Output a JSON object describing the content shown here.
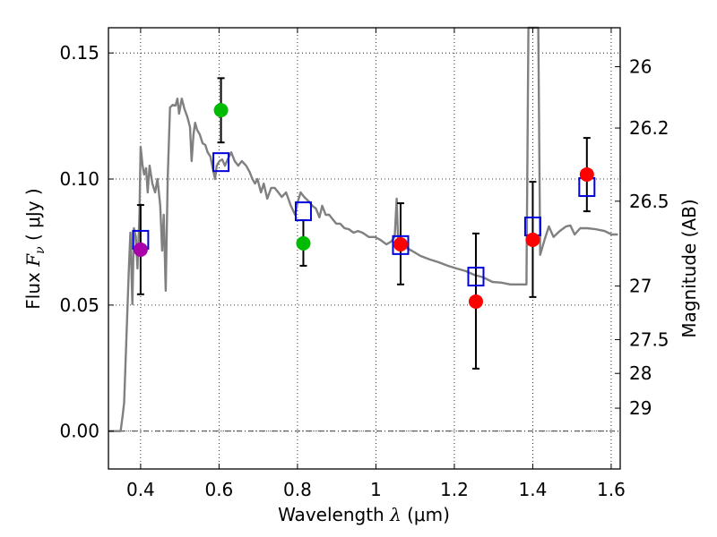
{
  "chart_data": {
    "type": "scatter",
    "title": "",
    "xlabel": "Wavelength  λ (μm)",
    "ylabel": "Flux  Fν  ( μJy )",
    "ylabel_parts": {
      "prefix": "Flux  ",
      "symbol": "F",
      "subscript": "ν",
      "suffix": "  ( μJy )"
    },
    "xlabel_parts": {
      "prefix": "Wavelength  ",
      "symbol": "λ",
      "suffix": " (μm)"
    },
    "y2label": "Magnitude (AB)",
    "xlim": [
      0.318,
      1.623
    ],
    "ylim": [
      -0.015,
      0.16
    ],
    "grid": true,
    "xticks": [
      {
        "value": 0.4,
        "label": "0.4"
      },
      {
        "value": 0.6,
        "label": "0.6"
      },
      {
        "value": 0.8,
        "label": "0.8"
      },
      {
        "value": 1.0,
        "label": "1"
      },
      {
        "value": 1.2,
        "label": "1.2"
      },
      {
        "value": 1.4,
        "label": "1.4"
      },
      {
        "value": 1.6,
        "label": "1.6"
      }
    ],
    "yticks": [
      {
        "value": 0.0,
        "label": "0.00"
      },
      {
        "value": 0.05,
        "label": "0.05"
      },
      {
        "value": 0.1,
        "label": "0.10"
      },
      {
        "value": 0.15,
        "label": "0.15"
      }
    ],
    "y2ticks": [
      {
        "mag": 26,
        "label": "26"
      },
      {
        "mag": 26.2,
        "label": "26.2"
      },
      {
        "mag": 26.5,
        "label": "26.5"
      },
      {
        "mag": 27,
        "label": "27"
      },
      {
        "mag": 27.5,
        "label": "27.5"
      },
      {
        "mag": 28,
        "label": "28"
      },
      {
        "mag": 29,
        "label": "29"
      }
    ],
    "zero_line": 0.0,
    "colors": {
      "spectrum": "#808080",
      "model_box": "#0000dd",
      "errorbar": "#000000",
      "purple": "#aa00aa",
      "green": "#00bb00",
      "red": "#ff0000"
    },
    "observations": [
      {
        "lambda": 0.4,
        "flux": 0.072,
        "err_low": 0.0543,
        "err_high": 0.0897,
        "color": "purple",
        "model": 0.0759
      },
      {
        "lambda": 0.605,
        "flux": 0.1273,
        "err_low": 0.1145,
        "err_high": 0.14,
        "color": "green",
        "model": 0.1067
      },
      {
        "lambda": 0.815,
        "flux": 0.0745,
        "err_low": 0.0656,
        "err_high": 0.0837,
        "color": "green",
        "model": 0.0872
      },
      {
        "lambda": 1.063,
        "flux": 0.0741,
        "err_low": 0.0582,
        "err_high": 0.0904,
        "color": "red",
        "model": 0.0738
      },
      {
        "lambda": 1.255,
        "flux": 0.0514,
        "err_low": 0.0248,
        "err_high": 0.0784,
        "color": "red",
        "model": 0.0613
      },
      {
        "lambda": 1.4,
        "flux": 0.0759,
        "err_low": 0.0532,
        "err_high": 0.0989,
        "color": "red",
        "model": 0.0812
      },
      {
        "lambda": 1.538,
        "flux": 0.1018,
        "err_low": 0.0872,
        "err_high": 0.1163,
        "color": "red",
        "model": 0.0968
      }
    ],
    "spectrum": [
      [
        0.318,
        0.0
      ],
      [
        0.349,
        0.0
      ],
      [
        0.354,
        0.006
      ],
      [
        0.358,
        0.0113
      ],
      [
        0.37,
        0.0645
      ],
      [
        0.374,
        0.0787
      ],
      [
        0.379,
        0.0504
      ],
      [
        0.383,
        0.0805
      ],
      [
        0.388,
        0.077
      ],
      [
        0.392,
        0.0645
      ],
      [
        0.397,
        0.0858
      ],
      [
        0.4,
        0.1128
      ],
      [
        0.405,
        0.1053
      ],
      [
        0.409,
        0.1018
      ],
      [
        0.414,
        0.1043
      ],
      [
        0.418,
        0.0947
      ],
      [
        0.423,
        0.1053
      ],
      [
        0.43,
        0.0982
      ],
      [
        0.437,
        0.0947
      ],
      [
        0.443,
        0.1
      ],
      [
        0.45,
        0.0894
      ],
      [
        0.455,
        0.0716
      ],
      [
        0.459,
        0.0858
      ],
      [
        0.464,
        0.0557
      ],
      [
        0.469,
        0.1
      ],
      [
        0.475,
        0.1284
      ],
      [
        0.482,
        0.1294
      ],
      [
        0.489,
        0.1291
      ],
      [
        0.494,
        0.1319
      ],
      [
        0.498,
        0.1259
      ],
      [
        0.505,
        0.1319
      ],
      [
        0.512,
        0.1277
      ],
      [
        0.519,
        0.1248
      ],
      [
        0.526,
        0.1206
      ],
      [
        0.53,
        0.1071
      ],
      [
        0.535,
        0.1177
      ],
      [
        0.539,
        0.1223
      ],
      [
        0.544,
        0.1195
      ],
      [
        0.551,
        0.1177
      ],
      [
        0.558,
        0.1142
      ],
      [
        0.565,
        0.1135
      ],
      [
        0.571,
        0.1106
      ],
      [
        0.578,
        0.1089
      ],
      [
        0.585,
        0.1035
      ],
      [
        0.59,
        0.1
      ],
      [
        0.594,
        0.1053
      ],
      [
        0.601,
        0.1071
      ],
      [
        0.608,
        0.1078
      ],
      [
        0.615,
        0.1053
      ],
      [
        0.622,
        0.1078
      ],
      [
        0.631,
        0.1106
      ],
      [
        0.64,
        0.1071
      ],
      [
        0.649,
        0.1053
      ],
      [
        0.658,
        0.1071
      ],
      [
        0.669,
        0.1053
      ],
      [
        0.678,
        0.1028
      ],
      [
        0.685,
        0.1
      ],
      [
        0.692,
        0.0982
      ],
      [
        0.698,
        0.1
      ],
      [
        0.707,
        0.0947
      ],
      [
        0.714,
        0.0982
      ],
      [
        0.723,
        0.0922
      ],
      [
        0.733,
        0.0965
      ],
      [
        0.742,
        0.0965
      ],
      [
        0.751,
        0.0947
      ],
      [
        0.76,
        0.0929
      ],
      [
        0.771,
        0.0947
      ],
      [
        0.783,
        0.0894
      ],
      [
        0.794,
        0.0858
      ],
      [
        0.801,
        0.0911
      ],
      [
        0.808,
        0.0947
      ],
      [
        0.817,
        0.0929
      ],
      [
        0.829,
        0.0911
      ],
      [
        0.838,
        0.0894
      ],
      [
        0.847,
        0.0883
      ],
      [
        0.856,
        0.0848
      ],
      [
        0.863,
        0.0894
      ],
      [
        0.872,
        0.0858
      ],
      [
        0.881,
        0.0858
      ],
      [
        0.89,
        0.084
      ],
      [
        0.899,
        0.0823
      ],
      [
        0.909,
        0.0823
      ],
      [
        0.92,
        0.0805
      ],
      [
        0.931,
        0.0801
      ],
      [
        0.943,
        0.0787
      ],
      [
        0.954,
        0.0794
      ],
      [
        0.966,
        0.0787
      ],
      [
        0.982,
        0.077
      ],
      [
        0.998,
        0.077
      ],
      [
        1.011,
        0.0759
      ],
      [
        1.027,
        0.0741
      ],
      [
        1.039,
        0.0752
      ],
      [
        1.048,
        0.077
      ],
      [
        1.053,
        0.0922
      ],
      [
        1.057,
        0.0752
      ],
      [
        1.069,
        0.0734
      ],
      [
        1.091,
        0.0716
      ],
      [
        1.114,
        0.0695
      ],
      [
        1.137,
        0.0681
      ],
      [
        1.16,
        0.067
      ],
      [
        1.183,
        0.0656
      ],
      [
        1.206,
        0.0645
      ],
      [
        1.229,
        0.0635
      ],
      [
        1.251,
        0.062
      ],
      [
        1.274,
        0.061
      ],
      [
        1.297,
        0.0592
      ],
      [
        1.32,
        0.0589
      ],
      [
        1.343,
        0.0582
      ],
      [
        1.37,
        0.0582
      ],
      [
        1.384,
        0.0582
      ],
      [
        1.389,
        0.16
      ],
      [
        1.414,
        0.16
      ],
      [
        1.419,
        0.0699
      ],
      [
        1.43,
        0.0759
      ],
      [
        1.441,
        0.0812
      ],
      [
        1.453,
        0.077
      ],
      [
        1.469,
        0.0794
      ],
      [
        1.485,
        0.0812
      ],
      [
        1.496,
        0.0816
      ],
      [
        1.507,
        0.078
      ],
      [
        1.521,
        0.0805
      ],
      [
        1.539,
        0.0805
      ],
      [
        1.56,
        0.0801
      ],
      [
        1.583,
        0.0794
      ],
      [
        1.601,
        0.078
      ],
      [
        1.617,
        0.078
      ]
    ]
  }
}
